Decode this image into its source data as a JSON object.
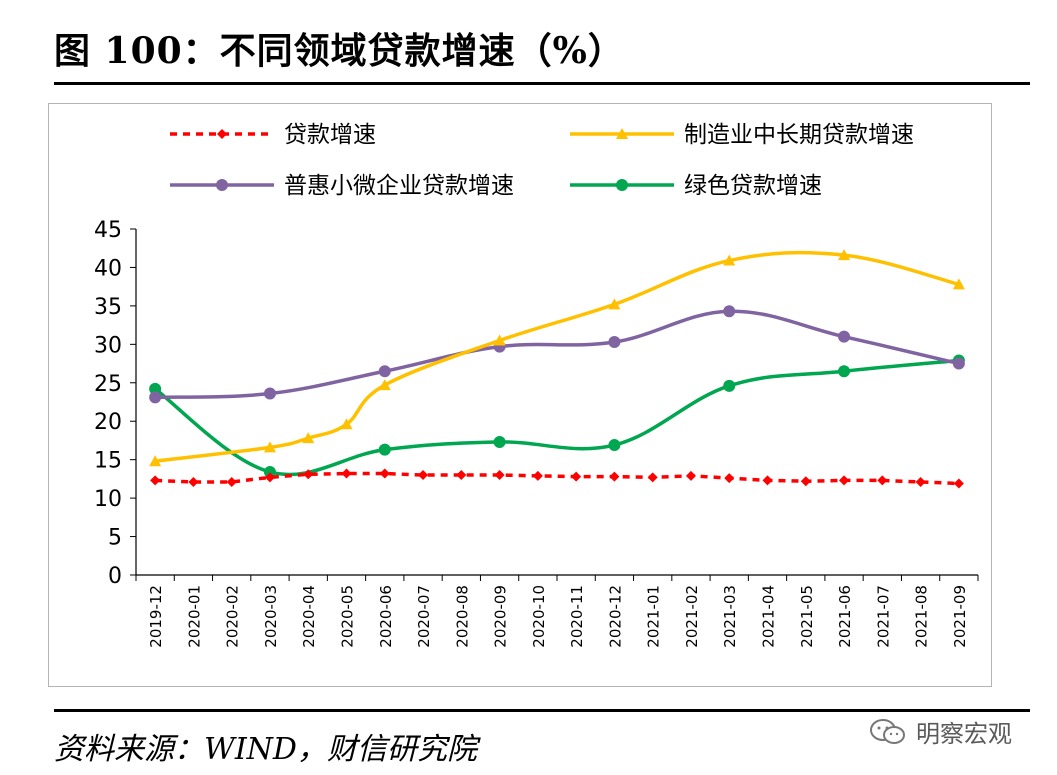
{
  "header": {
    "title": "图 100：不同领域贷款增速（%）"
  },
  "footer": {
    "source": "资料来源：WIND，财信研究院",
    "watermark": "明察宏观"
  },
  "chart_data": {
    "type": "line",
    "title": "图 100：不同领域贷款增速（%）",
    "xlabel": "",
    "ylabel": "",
    "ylim": [
      0,
      45
    ],
    "yticks": [
      "0",
      "5",
      "10",
      "15",
      "20",
      "25",
      "30",
      "35",
      "40",
      "45"
    ],
    "categories": [
      "2019-12",
      "2020-01",
      "2020-02",
      "2020-03",
      "2020-04",
      "2020-05",
      "2020-06",
      "2020-07",
      "2020-08",
      "2020-09",
      "2020-10",
      "2020-11",
      "2020-12",
      "2021-01",
      "2021-02",
      "2021-03",
      "2021-04",
      "2021-05",
      "2021-06",
      "2021-07",
      "2021-08",
      "2021-09"
    ],
    "legend": "top",
    "series": [
      {
        "name": "贷款增速",
        "color": "#ff0000",
        "style": "dashed",
        "marker": "diamond",
        "values": [
          12.3,
          12.1,
          12.1,
          12.7,
          13.1,
          13.2,
          13.2,
          13.0,
          13.0,
          13.0,
          12.9,
          12.8,
          12.8,
          12.7,
          12.9,
          12.6,
          12.3,
          12.2,
          12.3,
          12.3,
          12.1,
          11.9
        ]
      },
      {
        "name": "制造业中长期贷款增速",
        "color": "#ffc000",
        "style": "solid",
        "marker": "triangle",
        "values": [
          14.8,
          null,
          null,
          16.6,
          17.8,
          19.6,
          24.7,
          null,
          null,
          30.5,
          null,
          null,
          35.2,
          null,
          null,
          40.9,
          null,
          null,
          41.6,
          null,
          null,
          37.8
        ]
      },
      {
        "name": "普惠小微企业贷款增速",
        "color": "#8064a2",
        "style": "solid",
        "marker": "circle",
        "values": [
          23.1,
          null,
          null,
          23.6,
          null,
          null,
          26.5,
          null,
          null,
          29.7,
          null,
          null,
          30.3,
          null,
          null,
          34.3,
          null,
          null,
          31.0,
          null,
          null,
          27.5
        ]
      },
      {
        "name": "绿色贷款增速",
        "color": "#00a650",
        "style": "solid",
        "marker": "circle",
        "values": [
          24.2,
          null,
          null,
          13.4,
          null,
          null,
          16.3,
          null,
          null,
          17.3,
          null,
          null,
          16.9,
          null,
          null,
          24.6,
          null,
          null,
          26.5,
          null,
          null,
          27.9
        ]
      }
    ]
  }
}
